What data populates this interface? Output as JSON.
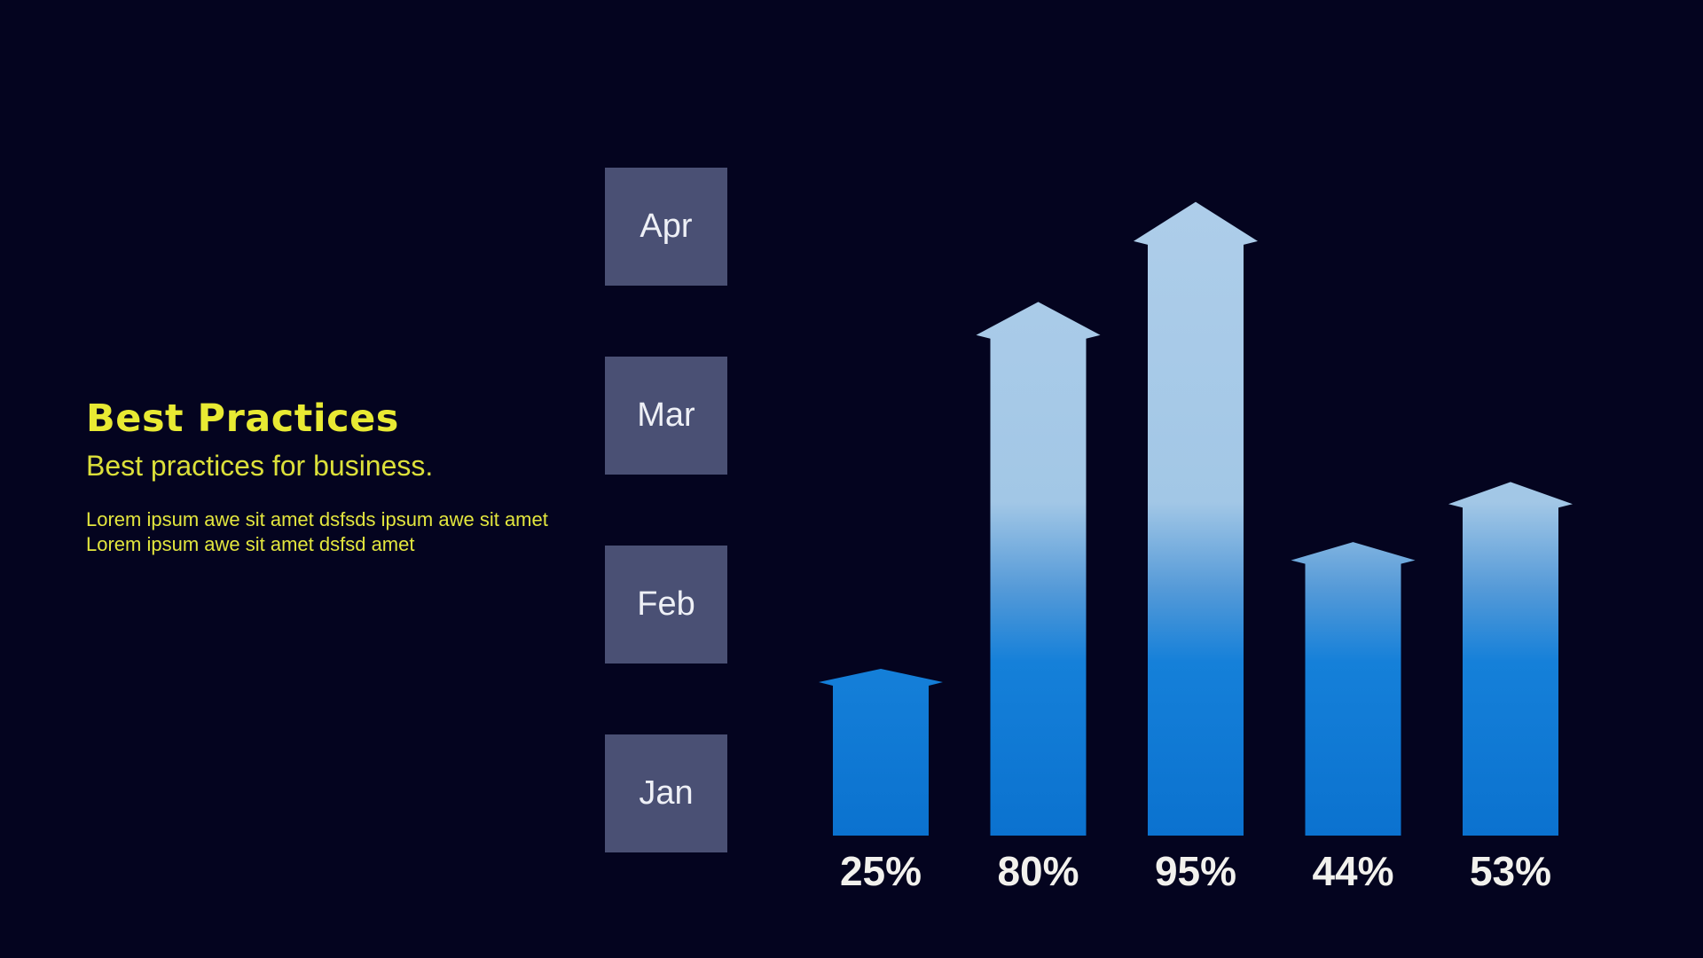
{
  "content": {
    "title": "Best Practices",
    "subtitle": "Best practices for business.",
    "body_lines": [
      "Lorem ipsum awe sit amet dsfsds ipsum awe sit amet",
      "Lorem ipsum awe sit amet dsfsd amet"
    ]
  },
  "months": [
    "Apr",
    "Mar",
    "Feb",
    "Jan"
  ],
  "theme": {
    "bg": "#04041f",
    "title": "#e8ea33",
    "subtitle": "#dce03a",
    "bodytext": "#e3e63e",
    "box": "#4a5074",
    "boxtext": "#eef0f6",
    "label": "#f2f1ed"
  },
  "chart_data": {
    "type": "bar",
    "style": "upward-arrow-bars",
    "values": [
      25,
      80,
      95,
      44,
      53
    ],
    "value_labels": [
      "25%",
      "80%",
      "95%",
      "44%",
      "53%"
    ],
    "unit": "%",
    "ylim": [
      0,
      100
    ],
    "xlabel": "",
    "ylabel": "",
    "time_axis_months_bottom_to_top": [
      "Jan",
      "Feb",
      "Mar",
      "Apr"
    ],
    "grid": false,
    "legend": false,
    "bar_gradient_stops": [
      {
        "offset": 0.0,
        "color": "#afceea"
      },
      {
        "offset": 0.5,
        "color": "#a2c7e6"
      },
      {
        "offset": 0.63,
        "color": "#559ad8"
      },
      {
        "offset": 0.74,
        "color": "#1580d9"
      },
      {
        "offset": 1.0,
        "color": "#0b72cf"
      }
    ]
  }
}
